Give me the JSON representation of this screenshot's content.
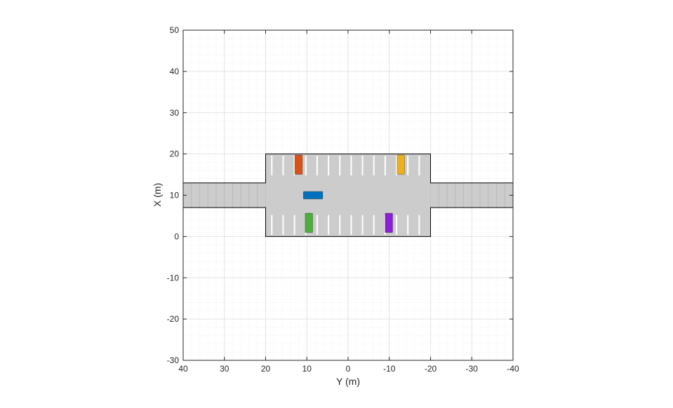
{
  "chart_data": {
    "type": "scene",
    "title": "",
    "xlabel": "Y (m)",
    "ylabel": "X (m)",
    "x_axis_reversed": true,
    "xlim": [
      40,
      -40
    ],
    "ylim": [
      -30,
      50
    ],
    "x_ticks": [
      40,
      30,
      20,
      10,
      0,
      -10,
      -20,
      -30,
      -40
    ],
    "y_ticks": [
      50,
      40,
      30,
      20,
      10,
      0,
      -10,
      -20,
      -30
    ],
    "x_tick_labels": [
      "40",
      "30",
      "20",
      "10",
      "0",
      "-10",
      "-20",
      "-30",
      "-40"
    ],
    "y_tick_labels": [
      "50",
      "40",
      "30",
      "20",
      "10",
      "0",
      "-10",
      "-20",
      "-30"
    ],
    "grid": true,
    "minor_grid": true,
    "colors": {
      "road": "#cccccc",
      "road_edge": "#000000",
      "lane_mark": "#ffffff",
      "grid_major": "#dcdcdc",
      "grid_minor": "#e6e6e6",
      "axis": "#262626"
    },
    "parking_lot": {
      "y_min": -20,
      "y_max": 20,
      "x_min": 0,
      "x_max": 20
    },
    "roads": [
      {
        "name": "left-road",
        "y_min": 20,
        "y_max": 40,
        "x_min": 7,
        "x_max": 13
      },
      {
        "name": "right-road",
        "y_min": -40,
        "y_max": -20,
        "x_min": 7,
        "x_max": 13
      }
    ],
    "road_segment_y": [
      40,
      38,
      36,
      34,
      32,
      30,
      28,
      26,
      24,
      22,
      20,
      -20,
      -22,
      -24,
      -26,
      -28,
      -30,
      -32,
      -34,
      -36,
      -38,
      -40
    ],
    "parking_lines_y": [
      18.5,
      15.75,
      13,
      10.25,
      7.5,
      4.75,
      2,
      -0.75,
      -3.5,
      -6.25,
      -9,
      -11.75,
      -14.5,
      -17.25
    ],
    "parking_lines_top_x": [
      14.8,
      19.6
    ],
    "parking_lines_bottom_x": [
      0.4,
      5.2
    ],
    "vehicles": [
      {
        "name": "ego-vehicle",
        "color": "#0072bd",
        "x_center": 10,
        "y_center": 8.5,
        "length": 4.7,
        "width": 1.8,
        "orientation": "horizontal"
      },
      {
        "name": "parked-orange",
        "color": "#d95319",
        "x_center": 17.4,
        "y_center": 12,
        "length": 4.7,
        "width": 1.8,
        "orientation": "vertical"
      },
      {
        "name": "parked-yellow",
        "color": "#edb120",
        "x_center": 17.4,
        "y_center": -12.8,
        "length": 4.7,
        "width": 1.8,
        "orientation": "vertical"
      },
      {
        "name": "parked-green",
        "color": "#4dae3b",
        "x_center": 3.3,
        "y_center": 9.5,
        "length": 4.7,
        "width": 1.8,
        "orientation": "vertical"
      },
      {
        "name": "parked-purple",
        "color": "#8b1fd3",
        "x_center": 3.3,
        "y_center": -9.9,
        "length": 4.7,
        "width": 1.8,
        "orientation": "vertical"
      }
    ]
  }
}
